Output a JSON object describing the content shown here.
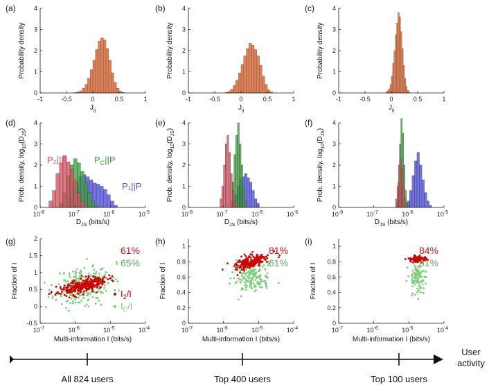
{
  "colors": {
    "orange": "#d9825a",
    "red": "#d9515e",
    "green": "#3aa13a",
    "blue": "#4d4de0",
    "scatter_red": "#cc0000",
    "scatter_green": "#7ccd7c",
    "pct_red": "#cc1111",
    "pct_green": "#5faa5f"
  },
  "chart_data": [
    {
      "panel": "(a)",
      "type": "bar",
      "title": "",
      "xlabel": "J",
      "xlabel_sub": "ij",
      "ylabel": "Probability density",
      "xlim": [
        -1,
        1
      ],
      "ylim": [
        0,
        4
      ],
      "xticks": [
        "-1",
        "-0.5",
        "0",
        "0.5",
        "1"
      ],
      "yticks": [
        "0",
        "1",
        "2",
        "3",
        "4"
      ],
      "bin_width": 0.05,
      "bin_start": -0.35,
      "values": [
        0.02,
        0.05,
        0.1,
        0.22,
        0.4,
        0.7,
        1.1,
        1.55,
        2.05,
        2.45,
        2.6,
        2.5,
        2.1,
        1.55,
        0.95,
        0.5,
        0.22,
        0.08,
        0.03
      ]
    },
    {
      "panel": "(b)",
      "type": "bar",
      "title": "",
      "xlabel": "J",
      "xlabel_sub": "ij",
      "ylabel": "Probability density",
      "xlim": [
        -1,
        1
      ],
      "ylim": [
        0,
        4
      ],
      "xticks": [
        "-1",
        "-0.5",
        "0",
        "0.5",
        "1"
      ],
      "yticks": [
        "0",
        "1",
        "2",
        "3",
        "4"
      ],
      "bin_width": 0.05,
      "bin_start": -0.3,
      "values": [
        0.03,
        0.08,
        0.18,
        0.35,
        0.6,
        0.95,
        1.35,
        1.75,
        2.1,
        2.35,
        2.25,
        2.05,
        1.75,
        1.3,
        0.8,
        0.4,
        0.15,
        0.05
      ]
    },
    {
      "panel": "(c)",
      "type": "bar",
      "title": "",
      "xlabel": "J",
      "xlabel_sub": "ij",
      "ylabel": "Probability density",
      "xlim": [
        -1,
        1
      ],
      "ylim": [
        0,
        4
      ],
      "xticks": [
        "-1",
        "-0.5",
        "0",
        "0.5",
        "1"
      ],
      "yticks": [
        "0",
        "1",
        "2",
        "3",
        "4"
      ],
      "bin_width": 0.025,
      "bin_start": -0.1,
      "values": [
        0.05,
        0.1,
        0.2,
        0.4,
        0.8,
        1.4,
        2.0,
        2.75,
        3.3,
        3.8,
        3.6,
        2.9,
        2.1,
        1.3,
        0.7,
        0.3,
        0.12,
        0.05
      ]
    },
    {
      "panel": "(d)",
      "type": "bar",
      "xscale": "log",
      "xlabel": "D",
      "xlabel_sub": "JS",
      "xlabel_rest": " (bits/s)",
      "ylabel": "Prob. density, log",
      "ylabel_sub": "10",
      "ylabel_rest": "(D",
      "ylabel_sub2": "JS",
      "ylabel_end": ")",
      "xlim_exp": [
        -8,
        -5
      ],
      "ylim": [
        0,
        4
      ],
      "xticks": [
        {
          "base": "10",
          "exp": "-8"
        },
        {
          "base": "10",
          "exp": "-7"
        },
        {
          "base": "10",
          "exp": "-6"
        },
        {
          "base": "10",
          "exp": "-5"
        }
      ],
      "yticks": [
        "0",
        "1",
        "2",
        "3",
        "4"
      ],
      "series": [
        {
          "name": "P₁||P",
          "color": "blue",
          "start_exp": -7.2,
          "bin": 0.1,
          "values": [
            0.5,
            1.0,
            1.2,
            1.45,
            1.55,
            1.45,
            1.3,
            1.15,
            1.1,
            1.0,
            0.85,
            0.6,
            0.3,
            0.1
          ]
        },
        {
          "name": "P_C||P",
          "color": "green",
          "start_exp": -7.45,
          "bin": 0.1,
          "values": [
            0.2,
            0.7,
            1.5,
            2.0,
            2.3,
            2.1,
            1.7,
            1.2,
            0.7,
            0.3,
            0.1
          ]
        },
        {
          "name": "P₂||P",
          "color": "red",
          "start_exp": -7.75,
          "bin": 0.1,
          "values": [
            0.3,
            0.8,
            1.6,
            2.1,
            2.45,
            2.15,
            1.8,
            1.3,
            0.7,
            0.3,
            0.1
          ]
        }
      ],
      "legend": [
        {
          "label": "P₂||P",
          "color": "red"
        },
        {
          "label": "P",
          "sub": "C",
          "rest": "||P",
          "color": "green"
        },
        {
          "label": "P₁||P",
          "color": "blue"
        }
      ]
    },
    {
      "panel": "(e)",
      "type": "bar",
      "xscale": "log",
      "xlabel": "D",
      "xlabel_sub": "JS",
      "xlabel_rest": " (bits/s)",
      "ylabel": "Prob. density, log",
      "ylabel_sub": "10",
      "ylabel_rest": "(D",
      "ylabel_sub2": "JS",
      "ylabel_end": ")",
      "xlim_exp": [
        -8,
        -5
      ],
      "ylim": [
        0,
        4
      ],
      "xticks": [
        {
          "base": "10",
          "exp": "-8"
        },
        {
          "base": "10",
          "exp": "-7"
        },
        {
          "base": "10",
          "exp": "-6"
        },
        {
          "base": "10",
          "exp": "-5"
        }
      ],
      "yticks": [
        "0",
        "1",
        "2",
        "3",
        "4"
      ],
      "series": [
        {
          "name": "P₁||P",
          "color": "blue",
          "start_exp": -6.75,
          "bin": 0.07,
          "values": [
            0.2,
            0.6,
            1.0,
            1.3,
            1.45,
            1.6,
            1.4,
            1.2,
            0.8,
            0.4,
            0.2
          ]
        },
        {
          "name": "P_C||P",
          "color": "green",
          "start_exp": -6.8,
          "bin": 0.05,
          "values": [
            0.3,
            1.2,
            2.5,
            3.4,
            4.0,
            3.0,
            2.0,
            1.0,
            0.3
          ]
        },
        {
          "name": "P₂||P",
          "color": "red",
          "start_exp": -7.1,
          "bin": 0.05,
          "values": [
            0.4,
            1.0,
            2.0,
            3.0,
            3.4,
            2.6,
            1.6,
            0.8,
            0.3
          ]
        }
      ]
    },
    {
      "panel": "(f)",
      "type": "bar",
      "xscale": "log",
      "xlabel": "D",
      "xlabel_sub": "JS",
      "xlabel_rest": " (bits/s)",
      "ylabel": "Prob. density, log",
      "ylabel_sub": "10",
      "ylabel_rest": "(D",
      "ylabel_sub2": "JS",
      "ylabel_end": ")",
      "xlim_exp": [
        -8,
        -5
      ],
      "ylim": [
        0,
        4
      ],
      "xticks": [
        {
          "base": "10",
          "exp": "-8"
        },
        {
          "base": "10",
          "exp": "-7"
        },
        {
          "base": "10",
          "exp": "-6"
        },
        {
          "base": "10",
          "exp": "-5"
        }
      ],
      "yticks": [
        "0",
        "1",
        "2",
        "3",
        "4"
      ],
      "series": [
        {
          "name": "P₁||P",
          "color": "blue",
          "start_exp": -6.05,
          "bin": 0.07,
          "values": [
            0.3,
            0.8,
            1.5,
            2.2,
            2.6,
            2.0,
            1.3,
            0.7,
            0.3,
            0.1
          ]
        },
        {
          "name": "P_C||P",
          "color": "green",
          "start_exp": -6.35,
          "bin": 0.04,
          "values": [
            0.3,
            1.2,
            3.0,
            4.2,
            3.5,
            2.0,
            0.8,
            0.2
          ]
        },
        {
          "name": "P₂||P",
          "color": "red",
          "start_exp": -6.38,
          "bin": 0.04,
          "values": [
            0.4,
            1.0,
            2.0,
            2.3,
            1.8,
            1.0,
            0.4
          ]
        }
      ]
    },
    {
      "panel": "(g)",
      "type": "scatter",
      "xscale": "log",
      "xlabel": "Multi-information I (bits/s)",
      "ylabel": "Fraction of I",
      "xlim_exp": [
        -7,
        -4
      ],
      "ylim": [
        -0.5,
        2
      ],
      "xticks": [
        {
          "base": "10",
          "exp": "-7"
        },
        {
          "base": "10",
          "exp": "-6"
        },
        {
          "base": "10",
          "exp": "-5"
        },
        {
          "base": "10",
          "exp": "-4"
        }
      ],
      "yticks": [
        "-0.5",
        "0",
        "0.5",
        "1",
        "1.5",
        "2"
      ],
      "pct_red": "61%",
      "pct_green": "65%",
      "legend": [
        {
          "label": "I",
          "sub": "2",
          "rest": "/I",
          "color": "scatter_red"
        },
        {
          "label": "I",
          "sub": "C",
          "rest": "/I",
          "color": "scatter_green"
        }
      ],
      "series": [
        {
          "name": "I_C/I",
          "color": "scatter_green",
          "count": 260,
          "cx_exp": -5.75,
          "sx": 0.4,
          "cy": 0.62,
          "sy": 0.28,
          "slope": 0.15,
          "seed": 11
        },
        {
          "name": "I_2/I",
          "color": "scatter_red",
          "count": 280,
          "cx_exp": -5.8,
          "sx": 0.35,
          "cy": 0.6,
          "sy": 0.1,
          "slope": 0.22,
          "seed": 23
        }
      ]
    },
    {
      "panel": "(h)",
      "type": "scatter",
      "xscale": "log",
      "xlabel": "Multi-information I (bits/s)",
      "ylabel": "Fraction of I",
      "xlim_exp": [
        -7,
        -4
      ],
      "ylim": [
        0,
        1.1
      ],
      "xticks": [
        {
          "base": "10",
          "exp": "-7"
        },
        {
          "base": "10",
          "exp": "-6"
        },
        {
          "base": "10",
          "exp": "-5"
        },
        {
          "base": "10",
          "exp": "-4"
        }
      ],
      "yticks": [
        "0",
        "0.2",
        "0.4",
        "0.6",
        "0.8",
        "1"
      ],
      "pct_red": "81%",
      "pct_green": "61%",
      "series": [
        {
          "name": "I_C/I",
          "color": "scatter_green",
          "count": 170,
          "cx_exp": -5.2,
          "sx": 0.28,
          "cy": 0.6,
          "sy": 0.1,
          "slope": 0.0,
          "seed": 31
        },
        {
          "name": "I_2/I",
          "color": "scatter_red",
          "count": 200,
          "cx_exp": -5.2,
          "sx": 0.25,
          "cy": 0.8,
          "sy": 0.04,
          "slope": 0.12,
          "seed": 47
        }
      ]
    },
    {
      "panel": "(i)",
      "type": "scatter",
      "xscale": "log",
      "xlabel": "Multi-information I (bits/s)",
      "ylabel": "Fraction of I",
      "xlim_exp": [
        -7,
        -4
      ],
      "ylim": [
        0,
        1.1
      ],
      "xticks": [
        {
          "base": "10",
          "exp": "-7"
        },
        {
          "base": "10",
          "exp": "-6"
        },
        {
          "base": "10",
          "exp": "-5"
        },
        {
          "base": "10",
          "exp": "-4"
        }
      ],
      "yticks": [
        "0",
        "0.2",
        "0.4",
        "0.6",
        "0.8",
        "1"
      ],
      "pct_red": "84%",
      "pct_green": "61%",
      "series": [
        {
          "name": "I_C/I",
          "color": "scatter_green",
          "count": 110,
          "cx_exp": -4.75,
          "sx": 0.12,
          "cy": 0.6,
          "sy": 0.1,
          "slope": 0.0,
          "seed": 53
        },
        {
          "name": "I_2/I",
          "color": "scatter_red",
          "count": 110,
          "cx_exp": -4.75,
          "sx": 0.12,
          "cy": 0.83,
          "sy": 0.02,
          "slope": 0.0,
          "seed": 67
        }
      ]
    }
  ],
  "timeline": {
    "labels": [
      "All 824 users",
      "Top 400 users",
      "Top 100 users"
    ],
    "arrow_label_1": "User",
    "arrow_label_2": "activity"
  }
}
